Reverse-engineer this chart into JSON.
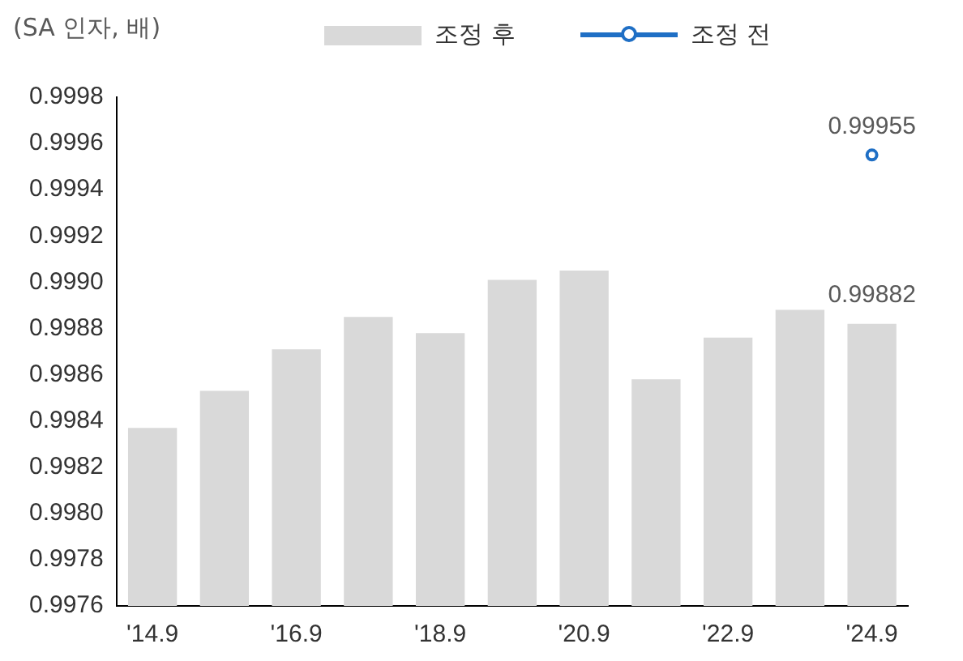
{
  "chart_data": {
    "type": "bar",
    "ylabel": "(SA 인자, 배)",
    "categories": [
      "'14.9",
      null,
      "'16.9",
      null,
      "'18.9",
      null,
      "'20.9",
      null,
      "'22.9",
      null,
      "'24.9"
    ],
    "series": [
      {
        "name": "조정 후",
        "color": "#d9d9d9",
        "values": [
          0.99837,
          0.99853,
          0.99871,
          0.99885,
          0.99878,
          0.99901,
          0.99905,
          0.99858,
          0.99876,
          0.99888,
          0.99882
        ],
        "value_labels": [
          null,
          null,
          null,
          null,
          null,
          null,
          null,
          null,
          null,
          null,
          "0.99882"
        ]
      },
      {
        "name": "조정 전",
        "type": "line",
        "color": "#1f6fc5",
        "marker": "circle",
        "values": [
          null,
          null,
          null,
          null,
          null,
          null,
          null,
          null,
          null,
          null,
          0.99955
        ],
        "value_labels": [
          null,
          null,
          null,
          null,
          null,
          null,
          null,
          null,
          null,
          null,
          "0.99955"
        ]
      }
    ],
    "ylim": [
      0.9976,
      0.9998
    ],
    "yticks": [
      {
        "value": 0.9976,
        "label": "0.9976"
      },
      {
        "value": 0.9978,
        "label": "0.9978"
      },
      {
        "value": 0.998,
        "label": "0.9980"
      },
      {
        "value": 0.9982,
        "label": "0.9982"
      },
      {
        "value": 0.9984,
        "label": "0.9984"
      },
      {
        "value": 0.9986,
        "label": "0.9986"
      },
      {
        "value": 0.9988,
        "label": "0.9988"
      },
      {
        "value": 0.999,
        "label": "0.9990"
      },
      {
        "value": 0.9992,
        "label": "0.9992"
      },
      {
        "value": 0.9994,
        "label": "0.9994"
      },
      {
        "value": 0.9996,
        "label": "0.9996"
      },
      {
        "value": 0.9998,
        "label": "0.9998"
      }
    ],
    "grid": false,
    "legend": "top"
  }
}
